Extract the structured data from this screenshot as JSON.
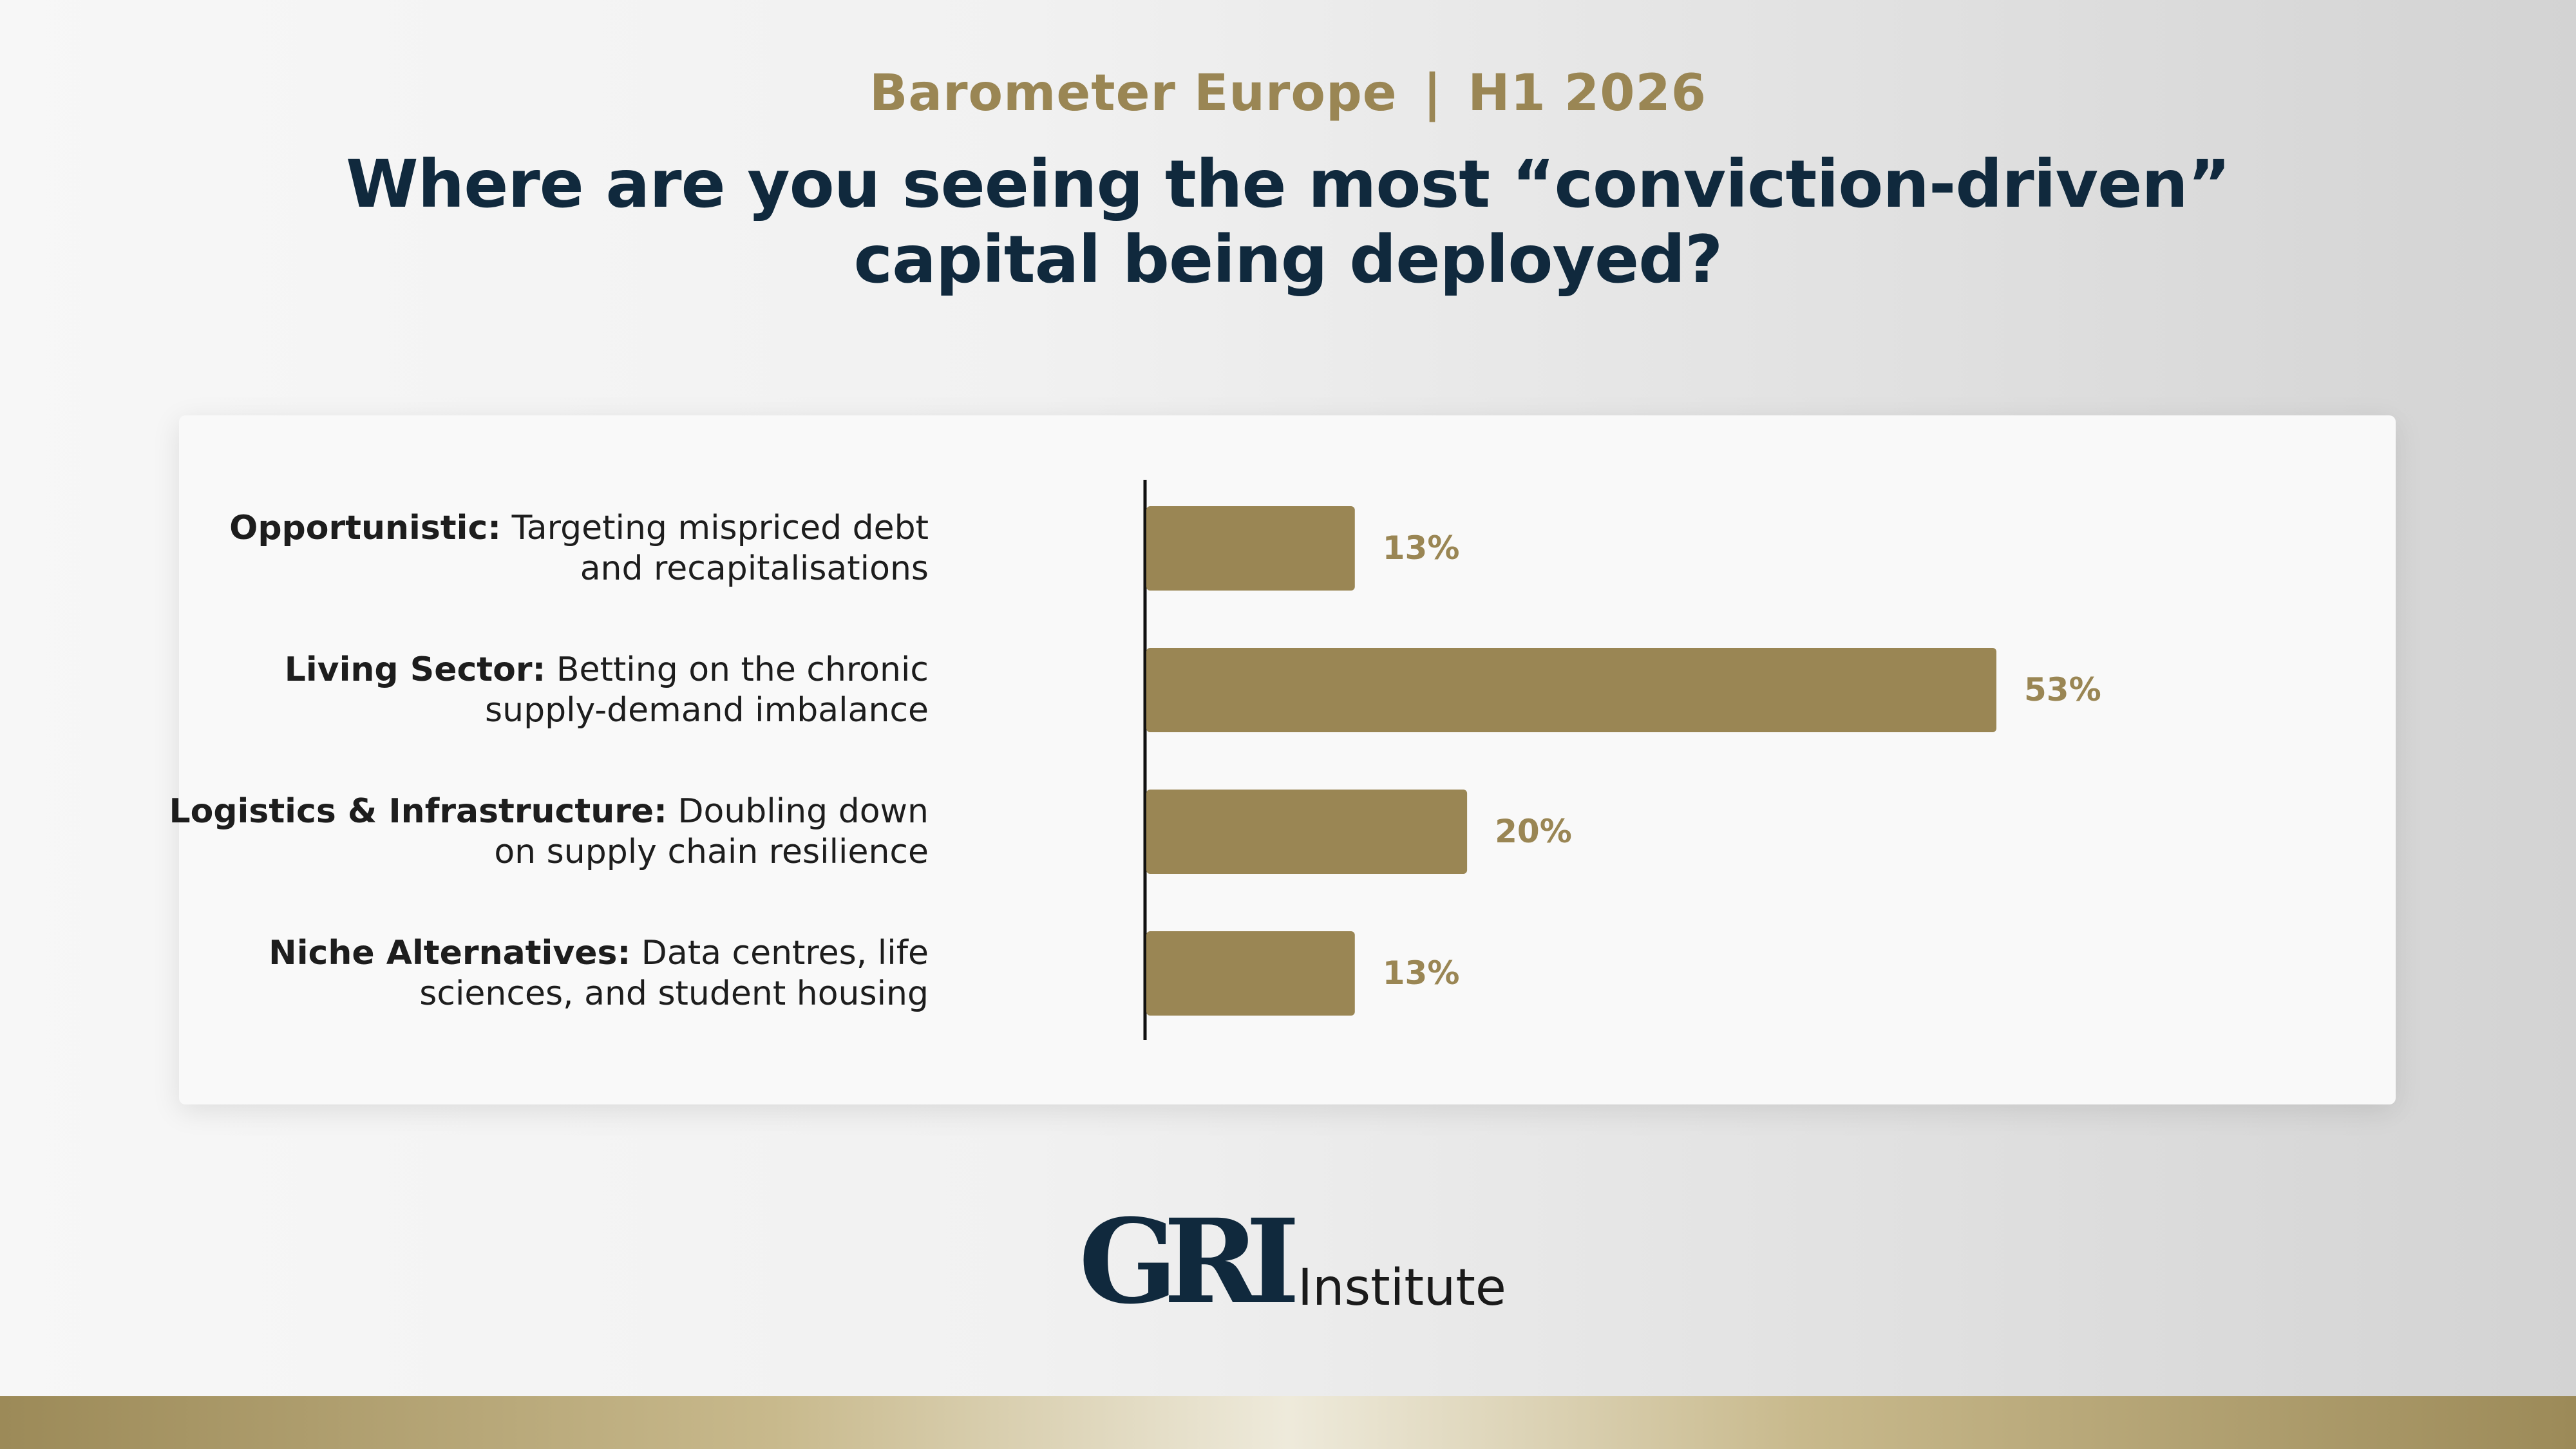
{
  "header": {
    "subtitle_left": "Barometer Europe",
    "subtitle_sep": "|",
    "subtitle_right": "H1 2026",
    "title_line1": "Where are you seeing the most “conviction-driven”",
    "title_line2": "capital being deployed?"
  },
  "chart_data": {
    "type": "bar",
    "orientation": "horizontal",
    "categories": [
      {
        "bold": "Opportunistic:",
        "line1": " Targeting mispriced debt",
        "line2": "and recapitalisations"
      },
      {
        "bold": "Living Sector:",
        "line1": " Betting on the chronic",
        "line2": "supply-demand imbalance"
      },
      {
        "bold": "Logistics & Infrastructure:",
        "line1": " Doubling down",
        "line2": "on supply chain resilience"
      },
      {
        "bold": "Niche Alternatives:",
        "line1": " Data centres, life",
        "line2": "sciences, and student housing"
      }
    ],
    "values": [
      13,
      53,
      20,
      13
    ],
    "value_labels": [
      "13%",
      "53%",
      "20%",
      "13%"
    ],
    "unit": "%",
    "xlim": [
      0,
      60
    ],
    "bar_color": "#9a8654",
    "axis_color": "#111111",
    "grid": false,
    "legend": "none"
  },
  "logo": {
    "mark": "GRI",
    "word": "Institute"
  },
  "colors": {
    "gold": "#9a8654",
    "navy": "#10293d"
  }
}
